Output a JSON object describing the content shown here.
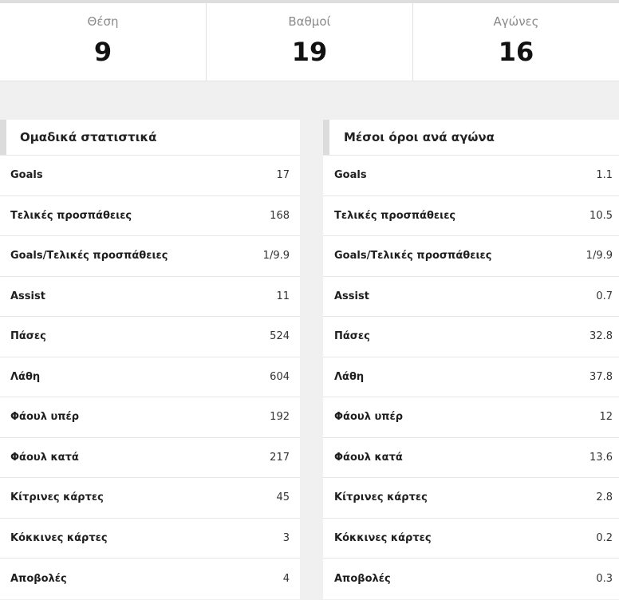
{
  "summary": [
    {
      "label": "Θέση",
      "value": "9"
    },
    {
      "label": "Βαθμοί",
      "value": "19"
    },
    {
      "label": "Αγώνες",
      "value": "16"
    }
  ],
  "team_stats": {
    "title": "Ομαδικά στατιστικά",
    "rows": [
      {
        "name": "Goals",
        "value": "17"
      },
      {
        "name": "Τελικές προσπάθειες",
        "value": "168"
      },
      {
        "name": "Goals/Τελικές προσπάθειες",
        "value": "1/9.9"
      },
      {
        "name": "Assist",
        "value": "11"
      },
      {
        "name": "Πάσες",
        "value": "524"
      },
      {
        "name": "Λάθη",
        "value": "604"
      },
      {
        "name": "Φάουλ υπέρ",
        "value": "192"
      },
      {
        "name": "Φάουλ κατά",
        "value": "217"
      },
      {
        "name": "Κίτρινες κάρτες",
        "value": "45"
      },
      {
        "name": "Κόκκινες κάρτες",
        "value": "3"
      },
      {
        "name": "Αποβολές",
        "value": "4"
      }
    ]
  },
  "averages": {
    "title": "Μέσοι όροι ανά αγώνα",
    "rows": [
      {
        "name": "Goals",
        "value": "1.1"
      },
      {
        "name": "Τελικές προσπάθειες",
        "value": "10.5"
      },
      {
        "name": "Goals/Τελικές προσπάθειες",
        "value": "1/9.9"
      },
      {
        "name": "Assist",
        "value": "0.7"
      },
      {
        "name": "Πάσες",
        "value": "32.8"
      },
      {
        "name": "Λάθη",
        "value": "37.8"
      },
      {
        "name": "Φάουλ υπέρ",
        "value": "12"
      },
      {
        "name": "Φάουλ κατά",
        "value": "13.6"
      },
      {
        "name": "Κίτρινες κάρτες",
        "value": "2.8"
      },
      {
        "name": "Κόκκινες κάρτες",
        "value": "0.2"
      },
      {
        "name": "Αποβολές",
        "value": "0.3"
      }
    ]
  }
}
